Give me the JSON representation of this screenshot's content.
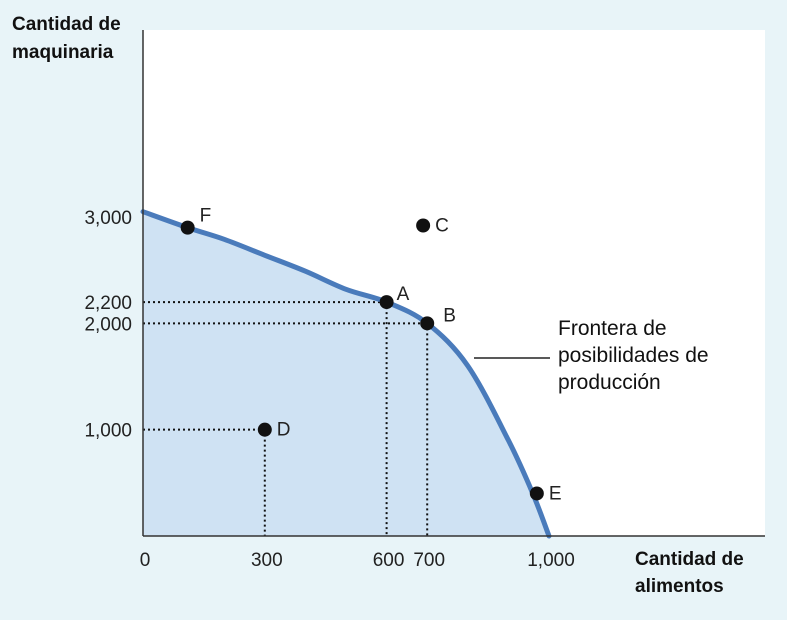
{
  "chart_data": {
    "type": "line",
    "ylabel_lines": [
      "Cantidad de",
      "maquinaria"
    ],
    "xlabel_lines": [
      "Cantidad de",
      "alimentos"
    ],
    "xlim": [
      0,
      1000
    ],
    "ylim": [
      0,
      3000
    ],
    "x_ticks": [
      {
        "value": 0,
        "label": "0"
      },
      {
        "value": 300,
        "label": "300"
      },
      {
        "value": 600,
        "label": "600"
      },
      {
        "value": 700,
        "label": "700"
      },
      {
        "value": 1000,
        "label": "1,000"
      }
    ],
    "y_ticks": [
      {
        "value": 1000,
        "label": "1,000"
      },
      {
        "value": 2000,
        "label": "2,000"
      },
      {
        "value": 2200,
        "label": "2,200"
      },
      {
        "value": 3000,
        "label": "3,000"
      }
    ],
    "frontier": {
      "x": [
        0,
        110,
        200,
        300,
        400,
        500,
        600,
        700,
        800,
        900,
        960,
        1000
      ],
      "y": [
        3050,
        2900,
        2790,
        2640,
        2490,
        2320,
        2200,
        2000,
        1600,
        900,
        400,
        0
      ]
    },
    "points": [
      {
        "label": "F",
        "x": 110,
        "y": 2900
      },
      {
        "label": "A",
        "x": 600,
        "y": 2200
      },
      {
        "label": "B",
        "x": 700,
        "y": 2000
      },
      {
        "label": "C",
        "x": 690,
        "y": 2920
      },
      {
        "label": "D",
        "x": 300,
        "y": 1000
      },
      {
        "label": "E",
        "x": 970,
        "y": 400
      }
    ],
    "dashed_guides": [
      "A",
      "B",
      "D"
    ],
    "annotation_lines": [
      "Frontera de",
      "posibilidades de",
      "producción"
    ],
    "colors": {
      "frontier": "#4a7bbb",
      "fill": "#cfe2f3",
      "plot_bg": "#ffffff",
      "point": "#111111"
    }
  }
}
